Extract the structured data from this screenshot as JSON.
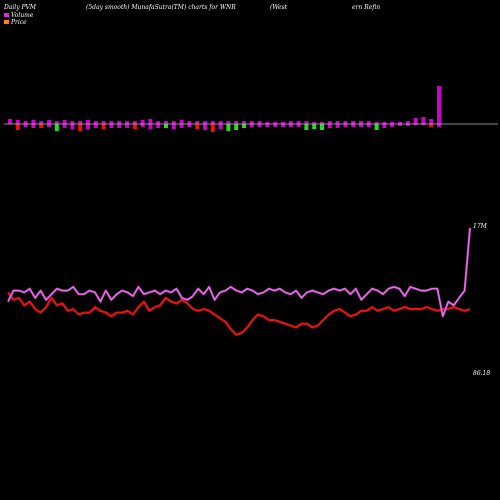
{
  "header": {
    "left": "Daily PVM",
    "center": "(5day smooth) MunafaSutra(TM) charts for WNR",
    "right_a": "(West",
    "right_b": "ern Refin"
  },
  "legend": [
    {
      "label": "Volume",
      "color": "#cc33cc"
    },
    {
      "label": "Price",
      "color": "#ff8800"
    }
  ],
  "colors": {
    "background": "#000000",
    "axis": "#bbbbbb",
    "volume_line": "#cc44cc",
    "volume_line_light": "#ee99ee",
    "price_line": "#ee1111",
    "bar_up": "#cc00cc",
    "bar_down_red": "#ee1111",
    "bar_down_green": "#22dd22"
  },
  "chart_data": {
    "type": "line",
    "title": "(5day smooth) MunafaSutra(TM) charts for WNR",
    "annotations": {
      "volume_last": "17M",
      "price_last": "86.18"
    },
    "bars": [
      {
        "up": 5,
        "down": 0,
        "color": "purple"
      },
      {
        "up": 4,
        "down": 6,
        "color": "red"
      },
      {
        "up": 3,
        "down": 3,
        "color": "purple"
      },
      {
        "up": 4,
        "down": 4,
        "color": "purple"
      },
      {
        "up": 3,
        "down": 4,
        "color": "red"
      },
      {
        "up": 4,
        "down": 3,
        "color": "purple"
      },
      {
        "up": 3,
        "down": 7,
        "color": "green"
      },
      {
        "up": 4,
        "down": 4,
        "color": "purple"
      },
      {
        "up": 3,
        "down": 5,
        "color": "purple"
      },
      {
        "up": 3,
        "down": 7,
        "color": "red"
      },
      {
        "up": 4,
        "down": 5,
        "color": "purple"
      },
      {
        "up": 3,
        "down": 4,
        "color": "purple"
      },
      {
        "up": 3,
        "down": 5,
        "color": "red"
      },
      {
        "up": 3,
        "down": 4,
        "color": "purple"
      },
      {
        "up": 3,
        "down": 4,
        "color": "purple"
      },
      {
        "up": 3,
        "down": 4,
        "color": "purple"
      },
      {
        "up": 3,
        "down": 5,
        "color": "red"
      },
      {
        "up": 4,
        "down": 3,
        "color": "purple"
      },
      {
        "up": 5,
        "down": 5,
        "color": "purple"
      },
      {
        "up": 3,
        "down": 4,
        "color": "purple"
      },
      {
        "up": 3,
        "down": 4,
        "color": "green"
      },
      {
        "up": 3,
        "down": 5,
        "color": "purple"
      },
      {
        "up": 4,
        "down": 4,
        "color": "purple"
      },
      {
        "up": 3,
        "down": 3,
        "color": "purple"
      },
      {
        "up": 3,
        "down": 5,
        "color": "red"
      },
      {
        "up": 3,
        "down": 6,
        "color": "purple"
      },
      {
        "up": 3,
        "down": 8,
        "color": "red"
      },
      {
        "up": 3,
        "down": 5,
        "color": "purple"
      },
      {
        "up": 3,
        "down": 7,
        "color": "green"
      },
      {
        "up": 3,
        "down": 6,
        "color": "green"
      },
      {
        "up": 3,
        "down": 4,
        "color": "green"
      },
      {
        "up": 3,
        "down": 3,
        "color": "purple"
      },
      {
        "up": 3,
        "down": 3,
        "color": "purple"
      },
      {
        "up": 2,
        "down": 3,
        "color": "purple"
      },
      {
        "up": 2,
        "down": 3,
        "color": "purple"
      },
      {
        "up": 2,
        "down": 3,
        "color": "purple"
      },
      {
        "up": 3,
        "down": 3,
        "color": "purple"
      },
      {
        "up": 3,
        "down": 3,
        "color": "purple"
      },
      {
        "up": 3,
        "down": 6,
        "color": "green"
      },
      {
        "up": 2,
        "down": 5,
        "color": "green"
      },
      {
        "up": 2,
        "down": 6,
        "color": "green"
      },
      {
        "up": 3,
        "down": 4,
        "color": "purple"
      },
      {
        "up": 3,
        "down": 4,
        "color": "purple"
      },
      {
        "up": 3,
        "down": 3,
        "color": "purple"
      },
      {
        "up": 3,
        "down": 3,
        "color": "purple"
      },
      {
        "up": 3,
        "down": 3,
        "color": "purple"
      },
      {
        "up": 3,
        "down": 3,
        "color": "purple"
      },
      {
        "up": 2,
        "down": 6,
        "color": "green"
      },
      {
        "up": 2,
        "down": 4,
        "color": "purple"
      },
      {
        "up": 2,
        "down": 3,
        "color": "purple"
      },
      {
        "up": 2,
        "down": 2,
        "color": "purple"
      },
      {
        "up": 3,
        "down": 2,
        "color": "purple"
      },
      {
        "up": 6,
        "down": 1,
        "color": "purple"
      },
      {
        "up": 7,
        "down": 1,
        "color": "purple"
      },
      {
        "up": 5,
        "down": 3,
        "color": "red"
      },
      {
        "up": 38,
        "down": 3,
        "color": "purple"
      }
    ],
    "series": [
      {
        "name": "Volume",
        "values": [
          60,
          66,
          66,
          65,
          67,
          62,
          66,
          61,
          64,
          67,
          66,
          66,
          68,
          64,
          64,
          66,
          65,
          60,
          66,
          61,
          64,
          66,
          65,
          63,
          68,
          64,
          65,
          66,
          64,
          66,
          65,
          67,
          62,
          61,
          63,
          67,
          64,
          68,
          61,
          65,
          66,
          68,
          66,
          65,
          67,
          66,
          64,
          65,
          67,
          66,
          67,
          65,
          64,
          66,
          62,
          65,
          66,
          65,
          64,
          66,
          67,
          66,
          67,
          64,
          67,
          61,
          64,
          67,
          66,
          64,
          67,
          68,
          67,
          63,
          68,
          67,
          66,
          66,
          67,
          67,
          52,
          60,
          58,
          62,
          66,
          100
        ]
      },
      {
        "name": "Price",
        "values": [
          65,
          61,
          62,
          58,
          60,
          56,
          54,
          57,
          62,
          58,
          59,
          55,
          56,
          53,
          54,
          54,
          57,
          55,
          54,
          52,
          54,
          54,
          55,
          53,
          57,
          60,
          55,
          57,
          58,
          62,
          60,
          59,
          61,
          59,
          56,
          55,
          56,
          55,
          53,
          51,
          49,
          45,
          42,
          43,
          46,
          50,
          53,
          52,
          50,
          50,
          49,
          48,
          47,
          46,
          48,
          48,
          46,
          47,
          50,
          53,
          55,
          56,
          54,
          52,
          53,
          55,
          55,
          57,
          55,
          56,
          57,
          55,
          56,
          57,
          56,
          56,
          56,
          57,
          56,
          55,
          56,
          56,
          57,
          56,
          55,
          56
        ]
      }
    ]
  }
}
